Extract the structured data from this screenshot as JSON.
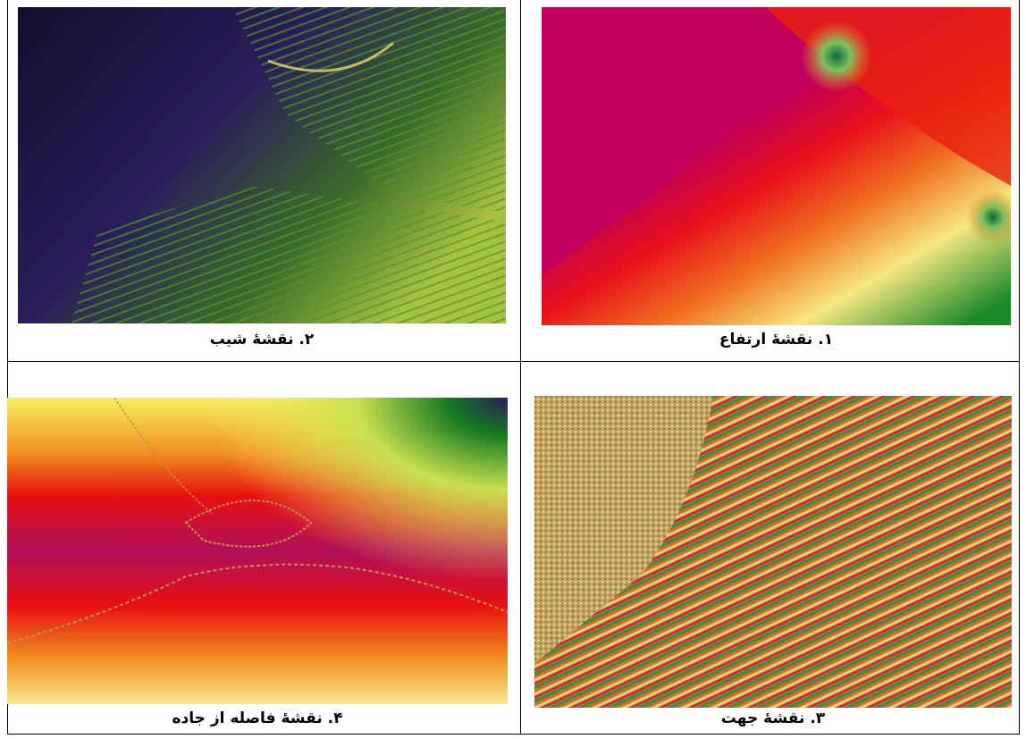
{
  "figures": [
    {
      "caption": "۲. نقشهٔ شیب"
    },
    {
      "caption": "۱. نقشهٔ ارتفاع"
    },
    {
      "caption": "۴. نقشهٔ فاصله از جاده"
    },
    {
      "caption": "۳. نقشهٔ جهت"
    }
  ]
}
